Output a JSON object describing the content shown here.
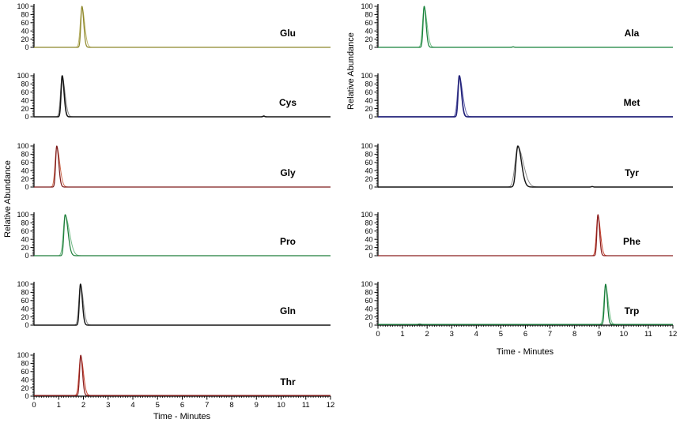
{
  "figure": {
    "background": "#ffffff",
    "axis_color": "#000000",
    "x_axis_label": "Time - Minutes",
    "y_axis_label": "Relative Abundance"
  },
  "chart_data": {
    "type": "line",
    "title": "",
    "xlabel": "Time - Minutes",
    "ylabel": "Relative Abundance",
    "x_range": [
      0,
      12
    ],
    "y_range": [
      0,
      100
    ],
    "x_ticks": [
      0,
      1,
      2,
      3,
      4,
      5,
      6,
      7,
      8,
      9,
      10,
      11,
      12
    ],
    "y_ticks": [
      0,
      20,
      40,
      60,
      80,
      100
    ],
    "grid": false,
    "legend": "none",
    "columns": [
      {
        "id": "left",
        "panels": [
          {
            "label": "Glu",
            "color": "#8e872a",
            "accent": "#b9b268",
            "retention_time": 1.94,
            "peak_height": 100,
            "peak_sigma": 0.045,
            "peak_tail": 1.6,
            "blips": []
          },
          {
            "label": "Cys",
            "color": "#151515",
            "accent": "#8a8a8a",
            "retention_time": 1.14,
            "peak_height": 100,
            "peak_sigma": 0.045,
            "peak_tail": 1.7,
            "stroke_width": 1.6,
            "blips": [
              {
                "time": 9.3,
                "height": 1.8
              }
            ]
          },
          {
            "label": "Gly",
            "color": "#7d1a1a",
            "accent": "#cc6a4e",
            "retention_time": 0.92,
            "peak_height": 100,
            "peak_sigma": 0.045,
            "peak_tail": 1.8,
            "blips": []
          },
          {
            "label": "Pro",
            "color": "#1e7e3a",
            "accent": "#74bb88",
            "retention_time": 1.26,
            "peak_height": 100,
            "peak_sigma": 0.05,
            "peak_tail": 2.3,
            "blips": []
          },
          {
            "label": "Gln",
            "color": "#151515",
            "accent": "#8a8a8a",
            "retention_time": 1.88,
            "peak_height": 100,
            "peak_sigma": 0.045,
            "peak_tail": 1.7,
            "stroke_width": 1.45,
            "blips": []
          },
          {
            "label": "Thr",
            "color": "#8b1d1d",
            "accent": "#c8432e",
            "retention_time": 1.89,
            "peak_height": 98,
            "peak_sigma": 0.045,
            "peak_tail": 1.6,
            "blips": []
          }
        ]
      },
      {
        "id": "right",
        "panels": [
          {
            "label": "Ala",
            "color": "#168139",
            "accent": "#6fbd85",
            "retention_time": 1.88,
            "peak_height": 100,
            "peak_sigma": 0.045,
            "peak_tail": 1.7,
            "blips": [
              {
                "time": 5.5,
                "height": 1.2
              }
            ]
          },
          {
            "label": "Met",
            "color": "#22227a",
            "accent": "#6a6ab0",
            "retention_time": 3.31,
            "peak_height": 100,
            "peak_sigma": 0.05,
            "peak_tail": 1.8,
            "stroke_width": 1.7,
            "blips": []
          },
          {
            "label": "Tyr",
            "color": "#151515",
            "accent": "#8a8a8a",
            "retention_time": 5.69,
            "peak_height": 100,
            "peak_sigma": 0.075,
            "peak_tail": 2.0,
            "stroke_width": 1.45,
            "blips": [
              {
                "time": 8.72,
                "height": 1.2
              }
            ]
          },
          {
            "label": "Phe",
            "color": "#8b1d1d",
            "accent": "#c8432e",
            "retention_time": 8.95,
            "peak_height": 100,
            "peak_sigma": 0.042,
            "peak_tail": 1.6,
            "blips": []
          },
          {
            "label": "Trp",
            "color": "#157a38",
            "accent": "#6fbd85",
            "retention_time": 9.26,
            "peak_height": 98,
            "peak_sigma": 0.045,
            "peak_tail": 1.6,
            "blips": [
              {
                "time": 1.7,
                "height": 1.0
              }
            ]
          }
        ]
      }
    ]
  }
}
